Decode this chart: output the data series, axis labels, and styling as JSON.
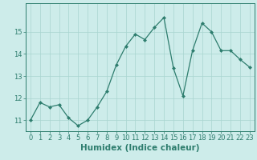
{
  "x": [
    0,
    1,
    2,
    3,
    4,
    5,
    6,
    7,
    8,
    9,
    10,
    11,
    12,
    13,
    14,
    15,
    16,
    17,
    18,
    19,
    20,
    21,
    22,
    23
  ],
  "y": [
    11.0,
    11.8,
    11.6,
    11.7,
    11.1,
    10.75,
    11.0,
    11.6,
    12.3,
    13.5,
    14.35,
    14.9,
    14.65,
    15.2,
    15.65,
    13.35,
    12.1,
    14.15,
    15.4,
    15.0,
    14.15,
    14.15,
    13.75,
    13.4
  ],
  "line_color": "#2e7d6e",
  "marker": "D",
  "marker_size": 2.0,
  "bg_color": "#cdecea",
  "grid_color": "#a8d5d0",
  "xlabel": "Humidex (Indice chaleur)",
  "xlabel_fontsize": 7.5,
  "ylim": [
    10.5,
    16.3
  ],
  "xlim": [
    -0.5,
    23.5
  ],
  "yticks": [
    11,
    12,
    13,
    14,
    15
  ],
  "xticks": [
    0,
    1,
    2,
    3,
    4,
    5,
    6,
    7,
    8,
    9,
    10,
    11,
    12,
    13,
    14,
    15,
    16,
    17,
    18,
    19,
    20,
    21,
    22,
    23
  ],
  "tick_fontsize": 6.0,
  "linewidth": 0.9
}
